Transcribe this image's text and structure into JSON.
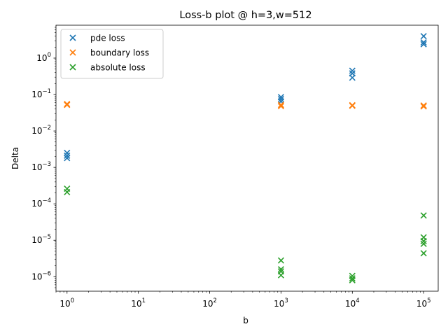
{
  "chart_data": {
    "type": "scatter",
    "title": "Loss-b plot @ h=3,w=512",
    "xlabel": "b",
    "ylabel": "Delta",
    "xscale": "log",
    "yscale": "log",
    "xlim": [
      0.7,
      160000
    ],
    "ylim": [
      4e-07,
      8
    ],
    "grid": false,
    "legend_position": "top-left",
    "marker": "x",
    "x_ticks": [
      {
        "value": 1,
        "base": "10",
        "exp": "0"
      },
      {
        "value": 10,
        "base": "10",
        "exp": "1"
      },
      {
        "value": 100,
        "base": "10",
        "exp": "2"
      },
      {
        "value": 1000,
        "base": "10",
        "exp": "3"
      },
      {
        "value": 10000,
        "base": "10",
        "exp": "4"
      },
      {
        "value": 100000,
        "base": "10",
        "exp": "5"
      }
    ],
    "y_ticks": [
      {
        "value": 1e-06,
        "base": "10",
        "exp": "−6"
      },
      {
        "value": 1e-05,
        "base": "10",
        "exp": "−5"
      },
      {
        "value": 0.0001,
        "base": "10",
        "exp": "−4"
      },
      {
        "value": 0.001,
        "base": "10",
        "exp": "−3"
      },
      {
        "value": 0.01,
        "base": "10",
        "exp": "−2"
      },
      {
        "value": 0.1,
        "base": "10",
        "exp": "−1"
      },
      {
        "value": 1,
        "base": "10",
        "exp": "0"
      }
    ],
    "series": [
      {
        "name": "pde loss",
        "color": "#1f77b4",
        "points": [
          [
            1,
            0.0025
          ],
          [
            1,
            0.0021
          ],
          [
            1,
            0.0018
          ],
          [
            1000,
            0.085
          ],
          [
            1000,
            0.075
          ],
          [
            1000,
            0.065
          ],
          [
            10000,
            0.45
          ],
          [
            10000,
            0.38
          ],
          [
            10000,
            0.29
          ],
          [
            100000,
            4.0
          ],
          [
            100000,
            2.7
          ],
          [
            100000,
            2.4
          ]
        ]
      },
      {
        "name": "boundary loss",
        "color": "#ff7f0e",
        "points": [
          [
            1,
            0.055
          ],
          [
            1,
            0.052
          ],
          [
            1000,
            0.052
          ],
          [
            1000,
            0.048
          ],
          [
            10000,
            0.051
          ],
          [
            10000,
            0.049
          ],
          [
            100000,
            0.05
          ],
          [
            100000,
            0.047
          ]
        ]
      },
      {
        "name": "absolute loss",
        "color": "#2ca02c",
        "points": [
          [
            1,
            0.00026
          ],
          [
            1,
            0.00021
          ],
          [
            1000,
            2.8e-06
          ],
          [
            1000,
            1.6e-06
          ],
          [
            1000,
            1.4e-06
          ],
          [
            1000,
            1.1e-06
          ],
          [
            10000,
            1.05e-06
          ],
          [
            10000,
            9e-07
          ],
          [
            10000,
            8e-07
          ],
          [
            100000,
            4.8e-05
          ],
          [
            100000,
            1.2e-05
          ],
          [
            100000,
            9.5e-06
          ],
          [
            100000,
            8e-06
          ],
          [
            100000,
            4.4e-06
          ]
        ]
      }
    ]
  }
}
